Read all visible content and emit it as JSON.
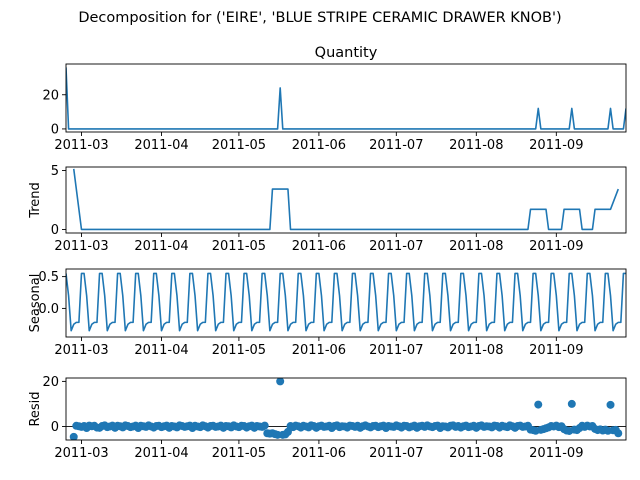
{
  "figure": {
    "suptitle": "Decomposition for ('EIRE', 'BLUE STRIPE CERAMIC DRAWER KNOB')"
  },
  "colors": {
    "series": "#1f77b4",
    "axis": "#000000",
    "zero_line": "#000000"
  },
  "chart_data": [
    {
      "type": "line",
      "panel": "observed",
      "title": "Quantity",
      "ylabel": "",
      "x_axis": {
        "start": "2011-02-23",
        "end": "2011-09-28",
        "tick_labels": [
          "2011-03",
          "2011-04",
          "2011-05",
          "2011-06",
          "2011-07",
          "2011-08",
          "2011-09"
        ],
        "tick_dates": [
          "2011-03-01",
          "2011-04-01",
          "2011-05-01",
          "2011-06-01",
          "2011-07-01",
          "2011-08-01",
          "2011-09-01"
        ]
      },
      "ylim": [
        -1.8,
        38
      ],
      "y_ticks": [
        0,
        20
      ],
      "base_value": 0,
      "points": [
        {
          "x": "2011-02-23",
          "y": 36
        },
        {
          "x": "2011-02-24",
          "y": 0
        },
        {
          "x": "2011-05-16",
          "y": 0
        },
        {
          "x": "2011-05-17",
          "y": 24
        },
        {
          "x": "2011-05-18",
          "y": 0
        },
        {
          "x": "2011-08-24",
          "y": 0
        },
        {
          "x": "2011-08-25",
          "y": 12
        },
        {
          "x": "2011-08-26",
          "y": 0
        },
        {
          "x": "2011-09-06",
          "y": 0
        },
        {
          "x": "2011-09-07",
          "y": 12
        },
        {
          "x": "2011-09-08",
          "y": 0
        },
        {
          "x": "2011-09-21",
          "y": 0
        },
        {
          "x": "2011-09-22",
          "y": 12
        },
        {
          "x": "2011-09-23",
          "y": 0
        },
        {
          "x": "2011-09-27",
          "y": 0
        },
        {
          "x": "2011-09-28",
          "y": 12
        }
      ]
    },
    {
      "type": "line",
      "panel": "trend",
      "title": "",
      "ylabel": "Trend",
      "ylim": [
        -0.3,
        5.3
      ],
      "y_ticks": [
        0,
        5
      ],
      "points": [
        {
          "x": "2011-02-26",
          "y": 5.14
        },
        {
          "x": "2011-03-01",
          "y": 0
        },
        {
          "x": "2011-05-13",
          "y": 0
        },
        {
          "x": "2011-05-14",
          "y": 3.43
        },
        {
          "x": "2011-05-20",
          "y": 3.43
        },
        {
          "x": "2011-05-21",
          "y": 0
        },
        {
          "x": "2011-08-21",
          "y": 0
        },
        {
          "x": "2011-08-22",
          "y": 1.71
        },
        {
          "x": "2011-08-28",
          "y": 1.71
        },
        {
          "x": "2011-08-29",
          "y": 0
        },
        {
          "x": "2011-09-03",
          "y": 0
        },
        {
          "x": "2011-09-04",
          "y": 1.71
        },
        {
          "x": "2011-09-10",
          "y": 1.71
        },
        {
          "x": "2011-09-11",
          "y": 0
        },
        {
          "x": "2011-09-15",
          "y": 0
        },
        {
          "x": "2011-09-16",
          "y": 1.71
        },
        {
          "x": "2011-09-22",
          "y": 1.71
        },
        {
          "x": "2011-09-25",
          "y": 3.43
        }
      ]
    },
    {
      "type": "line",
      "panel": "seasonal",
      "title": "",
      "ylabel": "Seasonal",
      "ylim": [
        -0.45,
        0.62
      ],
      "y_ticks": [
        0.0,
        0.5
      ],
      "y_tick_labels": [
        "0.0",
        "0.5"
      ],
      "period_days": 7,
      "cycle_values": [
        0.55,
        0.2,
        -0.35,
        -0.25,
        -0.22,
        -0.22,
        0.55
      ],
      "first_x": "2011-02-23",
      "last_x": "2011-09-28"
    },
    {
      "type": "scatter",
      "panel": "resid",
      "title": "",
      "ylabel": "Resid",
      "ylim": [
        -6,
        21.5
      ],
      "y_ticks": [
        0,
        20
      ],
      "zero_line": true,
      "points": [
        {
          "x": "2011-02-26",
          "y": -4.6
        },
        {
          "x": "2011-02-27",
          "y": 0.3
        },
        {
          "x": "2011-02-28",
          "y": 0.1
        },
        {
          "x": "2011-03-01",
          "y": -0.2
        },
        {
          "x": "2011-03-02",
          "y": 0.2
        },
        {
          "x": "2011-03-03",
          "y": -0.7
        },
        {
          "x": "2011-03-04",
          "y": 0.4
        },
        {
          "x": "2011-03-05",
          "y": 0.1
        },
        {
          "x": "2011-03-06",
          "y": 0.3
        },
        {
          "x": "2011-03-07",
          "y": -0.5
        },
        {
          "x": "2011-03-08",
          "y": -0.6
        },
        {
          "x": "2011-03-09",
          "y": 0.2
        },
        {
          "x": "2011-03-10",
          "y": 0.5
        },
        {
          "x": "2011-03-11",
          "y": -0.3
        },
        {
          "x": "2011-03-12",
          "y": 0.0
        },
        {
          "x": "2011-03-13",
          "y": 0.4
        },
        {
          "x": "2011-03-14",
          "y": -0.6
        },
        {
          "x": "2011-03-15",
          "y": 0.3
        },
        {
          "x": "2011-03-16",
          "y": 0.1
        },
        {
          "x": "2011-03-17",
          "y": -0.4
        },
        {
          "x": "2011-03-18",
          "y": 0.5
        },
        {
          "x": "2011-03-19",
          "y": 0.2
        },
        {
          "x": "2011-03-20",
          "y": -0.3
        },
        {
          "x": "2011-03-21",
          "y": 0.0
        },
        {
          "x": "2011-03-22",
          "y": 0.4
        },
        {
          "x": "2011-03-23",
          "y": -0.7
        },
        {
          "x": "2011-03-24",
          "y": 0.3
        },
        {
          "x": "2011-03-25",
          "y": 0.1
        },
        {
          "x": "2011-03-26",
          "y": -0.2
        },
        {
          "x": "2011-03-27",
          "y": 0.5
        },
        {
          "x": "2011-03-28",
          "y": 0.0
        },
        {
          "x": "2011-03-29",
          "y": -0.5
        },
        {
          "x": "2011-03-30",
          "y": 0.2
        },
        {
          "x": "2011-03-31",
          "y": 0.3
        },
        {
          "x": "2011-04-01",
          "y": -0.3
        },
        {
          "x": "2011-04-02",
          "y": 0.1
        },
        {
          "x": "2011-04-03",
          "y": 0.4
        },
        {
          "x": "2011-04-04",
          "y": -0.6
        },
        {
          "x": "2011-04-05",
          "y": 0.2
        },
        {
          "x": "2011-04-06",
          "y": 0.0
        },
        {
          "x": "2011-04-07",
          "y": -0.4
        },
        {
          "x": "2011-04-08",
          "y": 0.5
        },
        {
          "x": "2011-04-09",
          "y": 0.2
        },
        {
          "x": "2011-04-10",
          "y": -0.2
        },
        {
          "x": "2011-04-11",
          "y": 0.1
        },
        {
          "x": "2011-04-12",
          "y": 0.4
        },
        {
          "x": "2011-04-13",
          "y": -0.7
        },
        {
          "x": "2011-04-14",
          "y": 0.3
        },
        {
          "x": "2011-04-15",
          "y": 0.0
        },
        {
          "x": "2011-04-16",
          "y": -0.3
        },
        {
          "x": "2011-04-17",
          "y": 0.5
        },
        {
          "x": "2011-04-18",
          "y": 0.1
        },
        {
          "x": "2011-04-19",
          "y": -0.5
        },
        {
          "x": "2011-04-20",
          "y": 0.2
        },
        {
          "x": "2011-04-21",
          "y": 0.3
        },
        {
          "x": "2011-04-22",
          "y": -0.2
        },
        {
          "x": "2011-04-23",
          "y": 0.0
        },
        {
          "x": "2011-04-24",
          "y": 0.4
        },
        {
          "x": "2011-04-25",
          "y": -0.6
        },
        {
          "x": "2011-04-26",
          "y": 0.2
        },
        {
          "x": "2011-04-27",
          "y": 0.1
        },
        {
          "x": "2011-04-28",
          "y": -0.4
        },
        {
          "x": "2011-04-29",
          "y": 0.5
        },
        {
          "x": "2011-04-30",
          "y": 0.0
        },
        {
          "x": "2011-05-01",
          "y": -0.3
        },
        {
          "x": "2011-05-02",
          "y": 0.3
        },
        {
          "x": "2011-05-03",
          "y": 0.2
        },
        {
          "x": "2011-05-04",
          "y": -0.5
        },
        {
          "x": "2011-05-05",
          "y": 0.1
        },
        {
          "x": "2011-05-06",
          "y": 0.4
        },
        {
          "x": "2011-05-07",
          "y": -0.6
        },
        {
          "x": "2011-05-08",
          "y": 0.2
        },
        {
          "x": "2011-05-09",
          "y": 0.0
        },
        {
          "x": "2011-05-10",
          "y": -0.2
        },
        {
          "x": "2011-05-11",
          "y": 0.4
        },
        {
          "x": "2011-05-12",
          "y": -3.0
        },
        {
          "x": "2011-05-13",
          "y": -3.2
        },
        {
          "x": "2011-05-14",
          "y": -3.0
        },
        {
          "x": "2011-05-15",
          "y": -3.4
        },
        {
          "x": "2011-05-16",
          "y": -3.7
        },
        {
          "x": "2011-05-17",
          "y": 20.0
        },
        {
          "x": "2011-05-18",
          "y": -3.7
        },
        {
          "x": "2011-05-19",
          "y": -3.5
        },
        {
          "x": "2011-05-20",
          "y": -2.4
        },
        {
          "x": "2011-05-21",
          "y": 0.2
        },
        {
          "x": "2011-05-22",
          "y": -0.3
        },
        {
          "x": "2011-05-23",
          "y": 0.4
        },
        {
          "x": "2011-05-24",
          "y": 0.1
        },
        {
          "x": "2011-05-25",
          "y": -0.5
        },
        {
          "x": "2011-05-26",
          "y": 0.3
        },
        {
          "x": "2011-05-27",
          "y": 0.0
        },
        {
          "x": "2011-05-28",
          "y": -0.4
        },
        {
          "x": "2011-05-29",
          "y": 0.5
        },
        {
          "x": "2011-05-30",
          "y": 0.2
        },
        {
          "x": "2011-05-31",
          "y": -0.6
        },
        {
          "x": "2011-06-01",
          "y": 0.1
        },
        {
          "x": "2011-06-02",
          "y": 0.4
        },
        {
          "x": "2011-06-03",
          "y": -0.2
        },
        {
          "x": "2011-06-04",
          "y": 0.0
        },
        {
          "x": "2011-06-05",
          "y": 0.3
        },
        {
          "x": "2011-06-06",
          "y": -0.7
        },
        {
          "x": "2011-06-07",
          "y": 0.2
        },
        {
          "x": "2011-06-08",
          "y": 0.5
        },
        {
          "x": "2011-06-09",
          "y": -0.3
        },
        {
          "x": "2011-06-10",
          "y": 0.1
        },
        {
          "x": "2011-06-11",
          "y": 0.0
        },
        {
          "x": "2011-06-12",
          "y": -0.5
        },
        {
          "x": "2011-06-13",
          "y": 0.4
        },
        {
          "x": "2011-06-14",
          "y": 0.2
        },
        {
          "x": "2011-06-15",
          "y": -0.2
        },
        {
          "x": "2011-06-16",
          "y": 0.3
        },
        {
          "x": "2011-06-17",
          "y": -0.6
        },
        {
          "x": "2011-06-18",
          "y": 0.1
        },
        {
          "x": "2011-06-19",
          "y": 0.5
        },
        {
          "x": "2011-06-20",
          "y": 0.0
        },
        {
          "x": "2011-06-21",
          "y": -0.4
        },
        {
          "x": "2011-06-22",
          "y": 0.2
        },
        {
          "x": "2011-06-23",
          "y": 0.3
        },
        {
          "x": "2011-06-24",
          "y": -0.3
        },
        {
          "x": "2011-06-25",
          "y": 0.1
        },
        {
          "x": "2011-06-26",
          "y": 0.4
        },
        {
          "x": "2011-06-27",
          "y": -0.7
        },
        {
          "x": "2011-06-28",
          "y": 0.2
        },
        {
          "x": "2011-06-29",
          "y": 0.0
        },
        {
          "x": "2011-06-30",
          "y": -0.2
        },
        {
          "x": "2011-07-01",
          "y": 0.5
        },
        {
          "x": "2011-07-02",
          "y": 0.1
        },
        {
          "x": "2011-07-03",
          "y": -0.5
        },
        {
          "x": "2011-07-04",
          "y": 0.3
        },
        {
          "x": "2011-07-05",
          "y": 0.2
        },
        {
          "x": "2011-07-06",
          "y": -0.4
        },
        {
          "x": "2011-07-07",
          "y": 0.0
        },
        {
          "x": "2011-07-08",
          "y": 0.4
        },
        {
          "x": "2011-07-09",
          "y": -0.6
        },
        {
          "x": "2011-07-10",
          "y": 0.1
        },
        {
          "x": "2011-07-11",
          "y": 0.3
        },
        {
          "x": "2011-07-12",
          "y": -0.2
        },
        {
          "x": "2011-07-13",
          "y": 0.5
        },
        {
          "x": "2011-07-14",
          "y": 0.0
        },
        {
          "x": "2011-07-15",
          "y": -0.3
        },
        {
          "x": "2011-07-16",
          "y": 0.2
        },
        {
          "x": "2011-07-17",
          "y": 0.4
        },
        {
          "x": "2011-07-18",
          "y": -0.7
        },
        {
          "x": "2011-07-19",
          "y": 0.1
        },
        {
          "x": "2011-07-20",
          "y": 0.0
        },
        {
          "x": "2011-07-21",
          "y": -0.4
        },
        {
          "x": "2011-07-22",
          "y": 0.3
        },
        {
          "x": "2011-07-23",
          "y": 0.5
        },
        {
          "x": "2011-07-24",
          "y": -0.2
        },
        {
          "x": "2011-07-25",
          "y": 0.2
        },
        {
          "x": "2011-07-26",
          "y": -0.5
        },
        {
          "x": "2011-07-27",
          "y": 0.1
        },
        {
          "x": "2011-07-28",
          "y": 0.4
        },
        {
          "x": "2011-07-29",
          "y": -0.3
        },
        {
          "x": "2011-07-30",
          "y": 0.0
        },
        {
          "x": "2011-07-31",
          "y": 0.3
        },
        {
          "x": "2011-08-01",
          "y": -0.6
        },
        {
          "x": "2011-08-02",
          "y": 0.2
        },
        {
          "x": "2011-08-03",
          "y": 0.5
        },
        {
          "x": "2011-08-04",
          "y": -0.2
        },
        {
          "x": "2011-08-05",
          "y": 0.1
        },
        {
          "x": "2011-08-06",
          "y": 0.0
        },
        {
          "x": "2011-08-07",
          "y": -0.4
        },
        {
          "x": "2011-08-08",
          "y": 0.4
        },
        {
          "x": "2011-08-09",
          "y": 0.2
        },
        {
          "x": "2011-08-10",
          "y": -0.5
        },
        {
          "x": "2011-08-11",
          "y": 0.3
        },
        {
          "x": "2011-08-12",
          "y": 0.0
        },
        {
          "x": "2011-08-13",
          "y": -0.3
        },
        {
          "x": "2011-08-14",
          "y": 0.5
        },
        {
          "x": "2011-08-15",
          "y": 0.1
        },
        {
          "x": "2011-08-16",
          "y": -0.6
        },
        {
          "x": "2011-08-17",
          "y": 0.2
        },
        {
          "x": "2011-08-18",
          "y": 0.4
        },
        {
          "x": "2011-08-19",
          "y": -0.2
        },
        {
          "x": "2011-08-20",
          "y": 0.0
        },
        {
          "x": "2011-08-21",
          "y": 0.3
        },
        {
          "x": "2011-08-22",
          "y": -1.4
        },
        {
          "x": "2011-08-23",
          "y": -1.6
        },
        {
          "x": "2011-08-24",
          "y": -1.9
        },
        {
          "x": "2011-08-25",
          "y": 9.7
        },
        {
          "x": "2011-08-26",
          "y": -1.5
        },
        {
          "x": "2011-08-27",
          "y": -1.2
        },
        {
          "x": "2011-08-28",
          "y": -0.8
        },
        {
          "x": "2011-08-29",
          "y": -0.4
        },
        {
          "x": "2011-08-30",
          "y": 0.2
        },
        {
          "x": "2011-08-31",
          "y": 0.0
        },
        {
          "x": "2011-09-01",
          "y": 0.4
        },
        {
          "x": "2011-09-02",
          "y": -0.3
        },
        {
          "x": "2011-09-03",
          "y": 0.1
        },
        {
          "x": "2011-09-04",
          "y": -1.2
        },
        {
          "x": "2011-09-05",
          "y": -1.8
        },
        {
          "x": "2011-09-06",
          "y": -2.0
        },
        {
          "x": "2011-09-07",
          "y": 10.0
        },
        {
          "x": "2011-09-08",
          "y": -1.4
        },
        {
          "x": "2011-09-09",
          "y": -1.6
        },
        {
          "x": "2011-09-10",
          "y": -0.7
        },
        {
          "x": "2011-09-11",
          "y": 0.3
        },
        {
          "x": "2011-09-12",
          "y": -0.2
        },
        {
          "x": "2011-09-13",
          "y": 0.4
        },
        {
          "x": "2011-09-14",
          "y": 0.0
        },
        {
          "x": "2011-09-15",
          "y": 0.2
        },
        {
          "x": "2011-09-16",
          "y": -1.1
        },
        {
          "x": "2011-09-17",
          "y": -1.6
        },
        {
          "x": "2011-09-18",
          "y": -1.3
        },
        {
          "x": "2011-09-19",
          "y": -1.8
        },
        {
          "x": "2011-09-20",
          "y": -1.4
        },
        {
          "x": "2011-09-21",
          "y": -1.9
        },
        {
          "x": "2011-09-22",
          "y": 9.6
        },
        {
          "x": "2011-09-23",
          "y": -1.7
        },
        {
          "x": "2011-09-24",
          "y": -1.5
        },
        {
          "x": "2011-09-25",
          "y": -3.0
        }
      ]
    }
  ]
}
